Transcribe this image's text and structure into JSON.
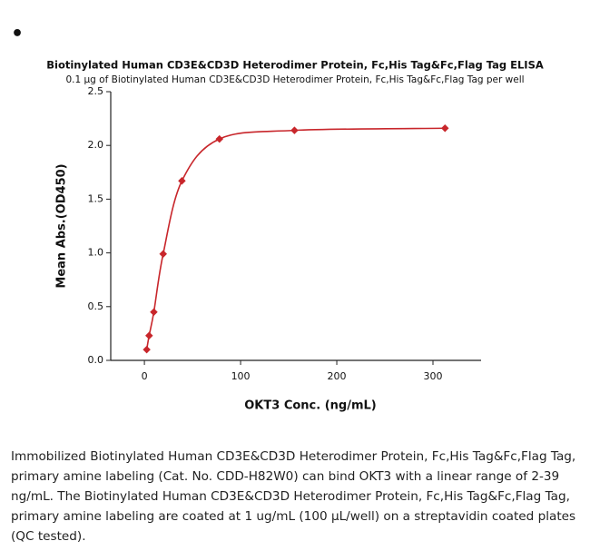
{
  "bullet": "•",
  "chart_data": {
    "type": "scatter",
    "title": "Biotinylated Human CD3E&CD3D Heterodimer Protein, Fc,His Tag&Fc,Flag Tag ELISA",
    "subtitle": "0.1 µg of Biotinylated Human CD3E&CD3D Heterodimer Protein, Fc,His Tag&Fc,Flag Tag per well",
    "x_label": "OKT3 Conc. (ng/mL)",
    "y_label": "Mean Abs.(OD450)",
    "x": [
      2.4,
      4.9,
      9.8,
      19.5,
      39,
      78,
      156,
      312.5
    ],
    "values": [
      0.1,
      0.23,
      0.45,
      0.99,
      1.67,
      2.06,
      2.14,
      2.16
    ],
    "color": "#c8262b",
    "xlim": [
      -35,
      350
    ],
    "xticks": [
      0,
      100,
      200,
      300
    ],
    "ylim": [
      0,
      2.5
    ],
    "yticks": [
      {
        "value": 0,
        "label": "0.0"
      },
      {
        "value": 0.5,
        "label": "0.5"
      },
      {
        "value": 1,
        "label": "1.0"
      },
      {
        "value": 1.5,
        "label": "1.5"
      },
      {
        "value": 2,
        "label": "2.0"
      },
      {
        "value": 2.5,
        "label": "2.5"
      }
    ]
  },
  "caption": [
    "Immobilized Biotinylated Human CD3E&CD3D Heterodimer Protein, Fc,His Tag&Fc,Flag Tag,",
    "primary amine labeling (Cat. No. CDD-H82W0) can bind OKT3 with a linear range of 2-39",
    "ng/mL. The Biotinylated Human CD3E&CD3D Heterodimer Protein, Fc,His Tag&Fc,Flag Tag,",
    "primary amine labeling are coated at 1 ug/mL (100 µL/well) on a streptavidin coated plates",
    "(QC tested)."
  ]
}
